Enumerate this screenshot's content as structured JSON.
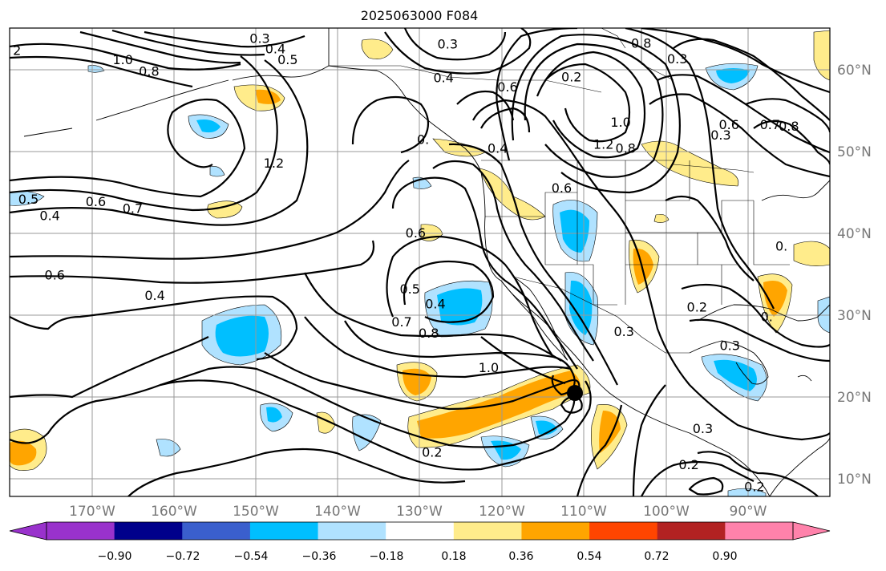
{
  "title": "2025063000 F084",
  "lon_ticks": [
    "170°W",
    "160°W",
    "150°W",
    "140°W",
    "130°W",
    "120°W",
    "110°W",
    "100°W",
    "90°W"
  ],
  "lat_ticks": [
    "60°N",
    "50°N",
    "40°N",
    "30°N",
    "20°N",
    "10°N"
  ],
  "colorbar": {
    "ticks": [
      "−0.90",
      "−0.72",
      "−0.54",
      "−0.36",
      "−0.18",
      "0.18",
      "0.36",
      "0.54",
      "0.72",
      "0.90"
    ],
    "colors": [
      "#9932cc",
      "#00008b",
      "#3a5fcd",
      "#00bfff",
      "#b0e2ff",
      "#ffffff",
      "#ffec8b",
      "#ffa500",
      "#ff4500",
      "#b22222",
      "#ff82ab"
    ]
  },
  "contour_labels": [
    {
      "text": "0.3",
      "lon": -149.5,
      "lat": 63.7
    },
    {
      "text": "0.4",
      "lon": -147.6,
      "lat": 62.4
    },
    {
      "text": "0.5",
      "lon": -146.1,
      "lat": 61.1
    },
    {
      "text": "1.0",
      "lon": -166.2,
      "lat": 61.1
    },
    {
      "text": "0.8",
      "lon": -163.0,
      "lat": 59.7
    },
    {
      "text": "2",
      "lon": -179.1,
      "lat": 62.2
    },
    {
      "text": "1.2",
      "lon": -147.8,
      "lat": 48.5
    },
    {
      "text": "0.5",
      "lon": -177.7,
      "lat": 44.1
    },
    {
      "text": "0.4",
      "lon": -175.1,
      "lat": 42.1
    },
    {
      "text": "0.6",
      "lon": -169.5,
      "lat": 43.8
    },
    {
      "text": "0.7",
      "lon": -165.0,
      "lat": 43.0
    },
    {
      "text": "0.6",
      "lon": -174.5,
      "lat": 34.9
    },
    {
      "text": "0.4",
      "lon": -162.3,
      "lat": 32.4
    },
    {
      "text": "0.3",
      "lon": -126.6,
      "lat": 63.0
    },
    {
      "text": "0.4",
      "lon": -127.1,
      "lat": 58.9
    },
    {
      "text": "0.6",
      "lon": -119.3,
      "lat": 57.8
    },
    {
      "text": "0.2",
      "lon": -111.5,
      "lat": 59.0
    },
    {
      "text": "0.8",
      "lon": -103.0,
      "lat": 63.1
    },
    {
      "text": "0.3",
      "lon": -98.6,
      "lat": 61.2
    },
    {
      "text": "1.0",
      "lon": -105.5,
      "lat": 53.5
    },
    {
      "text": "1.2",
      "lon": -107.6,
      "lat": 50.8
    },
    {
      "text": "0.8",
      "lon": -104.9,
      "lat": 50.3
    },
    {
      "text": "0.4",
      "lon": -120.5,
      "lat": 50.3
    },
    {
      "text": "0.",
      "lon": -129.6,
      "lat": 51.4
    },
    {
      "text": "0.6",
      "lon": -112.7,
      "lat": 45.5
    },
    {
      "text": "0.6",
      "lon": -130.5,
      "lat": 40.0
    },
    {
      "text": "0.5",
      "lon": -131.2,
      "lat": 33.2
    },
    {
      "text": "0.4",
      "lon": -128.1,
      "lat": 31.4
    },
    {
      "text": "0.7",
      "lon": -132.2,
      "lat": 29.2
    },
    {
      "text": "0.8",
      "lon": -128.9,
      "lat": 27.8
    },
    {
      "text": "1.0",
      "lon": -121.6,
      "lat": 23.6
    },
    {
      "text": "0.3",
      "lon": -105.1,
      "lat": 28.0
    },
    {
      "text": "0.2",
      "lon": -128.5,
      "lat": 13.3
    },
    {
      "text": "0.6",
      "lon": -92.3,
      "lat": 53.2
    },
    {
      "text": "0.3",
      "lon": -93.3,
      "lat": 51.9
    },
    {
      "text": "0.7",
      "lon": -87.3,
      "lat": 53.2
    },
    {
      "text": "0.8",
      "lon": -85.0,
      "lat": 53.0
    },
    {
      "text": "0.",
      "lon": -85.9,
      "lat": 38.4
    },
    {
      "text": "0.",
      "lon": -87.7,
      "lat": 29.8
    },
    {
      "text": "0.2",
      "lon": -96.2,
      "lat": 31.0
    },
    {
      "text": "0.3",
      "lon": -92.2,
      "lat": 26.3
    },
    {
      "text": "0.3",
      "lon": -95.5,
      "lat": 16.2
    },
    {
      "text": "0.2",
      "lon": -97.2,
      "lat": 11.8
    },
    {
      "text": "0.2",
      "lon": -89.2,
      "lat": 9.1
    }
  ]
}
